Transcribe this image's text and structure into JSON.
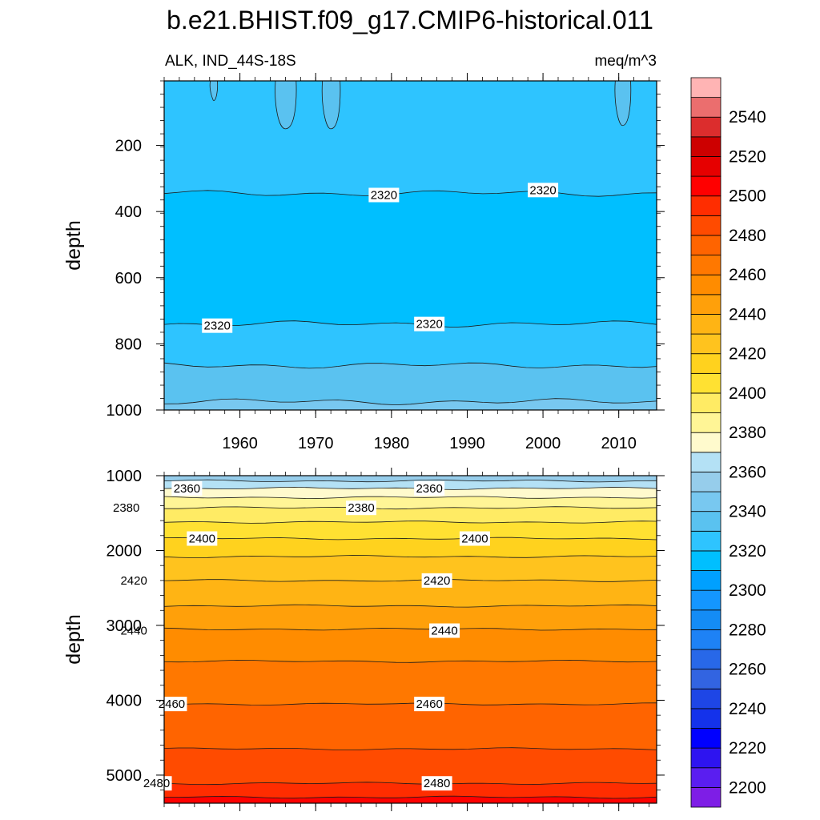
{
  "chart_data": {
    "type": "heatmap",
    "title": "b.e21.BHIST.f09_g17.CMIP6-historical.011",
    "left_string": "ALK, IND_44S-18S",
    "right_string": "meq/m^3",
    "colorbar": {
      "levels": [
        2200,
        2210,
        2220,
        2230,
        2240,
        2250,
        2260,
        2270,
        2280,
        2290,
        2300,
        2310,
        2320,
        2330,
        2340,
        2350,
        2360,
        2370,
        2380,
        2390,
        2400,
        2410,
        2420,
        2430,
        2440,
        2450,
        2460,
        2470,
        2480,
        2490,
        2500,
        2510,
        2520,
        2530,
        2540,
        2550
      ],
      "colors": [
        "#7e1ee6",
        "#5a1ef0",
        "#2e14f0",
        "#0000ff",
        "#1432eb",
        "#1e46e6",
        "#3264e1",
        "#2868e8",
        "#1e82f5",
        "#148cf5",
        "#1496ff",
        "#00a0ff",
        "#00bfff",
        "#2ec4ff",
        "#5ac2f0",
        "#78c8f0",
        "#96cdeb",
        "#b4e1f5",
        "#fffacd",
        "#fff596",
        "#ffeb64",
        "#ffe132",
        "#ffd21e",
        "#ffc31e",
        "#ffb414",
        "#ffa00a",
        "#ff8c00",
        "#ff7800",
        "#ff6400",
        "#ff4b00",
        "#ff2d00",
        "#ff0000",
        "#e60000",
        "#cd0000",
        "#dc2d2d",
        "#eb6e6e",
        "#ffb4b4"
      ],
      "labels": [
        "2200",
        "2220",
        "2240",
        "2260",
        "2280",
        "2300",
        "2320",
        "2340",
        "2360",
        "2380",
        "2400",
        "2420",
        "2440",
        "2460",
        "2480",
        "2500",
        "2520",
        "2540"
      ]
    },
    "top_panel": {
      "x_range": [
        1950,
        2015
      ],
      "x_ticks": [
        1960,
        1970,
        1980,
        1990,
        2000,
        2010
      ],
      "x_tick_labels": [
        "1960",
        "1970",
        "1980",
        "1990",
        "2000",
        "2010"
      ],
      "y_range": [
        5,
        1000
      ],
      "y_ticks": [
        200,
        400,
        600,
        800,
        1000
      ],
      "y_tick_labels": [
        "200",
        "400",
        "600",
        "800",
        "1000"
      ],
      "ylabel": "depth",
      "bands": [
        {
          "from_depth": 5,
          "to_depth": 345,
          "value": 2325
        },
        {
          "from_depth": 345,
          "to_depth": 740,
          "value": 2315
        },
        {
          "from_depth": 740,
          "to_depth": 865,
          "value": 2325
        },
        {
          "from_depth": 865,
          "to_depth": 975,
          "value": 2335
        },
        {
          "from_depth": 975,
          "to_depth": 1000,
          "value": 2345
        }
      ],
      "contour_labels": [
        {
          "text": "2320",
          "year": 1979,
          "depth": 350
        },
        {
          "text": "2320",
          "year": 2000,
          "depth": 335
        },
        {
          "text": "2320",
          "year": 1957,
          "depth": 745
        },
        {
          "text": "2320",
          "year": 1985,
          "depth": 740
        }
      ]
    },
    "bottom_panel": {
      "y_range": [
        1000,
        5375
      ],
      "y_ticks": [
        1000,
        2000,
        3000,
        4000,
        5000
      ],
      "y_tick_labels": [
        "1000",
        "2000",
        "3000",
        "4000",
        "5000"
      ],
      "ylabel": "depth",
      "bands": [
        {
          "from_depth": 1000,
          "to_depth": 1070,
          "value": 2355
        },
        {
          "from_depth": 1070,
          "to_depth": 1170,
          "value": 2365
        },
        {
          "from_depth": 1170,
          "to_depth": 1290,
          "value": 2375
        },
        {
          "from_depth": 1290,
          "to_depth": 1430,
          "value": 2385
        },
        {
          "from_depth": 1430,
          "to_depth": 1620,
          "value": 2395
        },
        {
          "from_depth": 1620,
          "to_depth": 1840,
          "value": 2405
        },
        {
          "from_depth": 1840,
          "to_depth": 2080,
          "value": 2415
        },
        {
          "from_depth": 2080,
          "to_depth": 2400,
          "value": 2425
        },
        {
          "from_depth": 2400,
          "to_depth": 2740,
          "value": 2435
        },
        {
          "from_depth": 2740,
          "to_depth": 3050,
          "value": 2445
        },
        {
          "from_depth": 3050,
          "to_depth": 3480,
          "value": 2455
        },
        {
          "from_depth": 3480,
          "to_depth": 4050,
          "value": 2465
        },
        {
          "from_depth": 4050,
          "to_depth": 4650,
          "value": 2475
        },
        {
          "from_depth": 4650,
          "to_depth": 5110,
          "value": 2485
        },
        {
          "from_depth": 5110,
          "to_depth": 5295,
          "value": 2495
        },
        {
          "from_depth": 5295,
          "to_depth": 5375,
          "value": 2505
        }
      ],
      "contour_labels": [
        {
          "text": "2360",
          "year": 1953,
          "depth": 1170
        },
        {
          "text": "2360",
          "year": 1985,
          "depth": 1170
        },
        {
          "text": "2380",
          "year": 1945,
          "depth": 1430
        },
        {
          "text": "2380",
          "year": 1976,
          "depth": 1430
        },
        {
          "text": "2400",
          "year": 1955,
          "depth": 1840
        },
        {
          "text": "2400",
          "year": 1991,
          "depth": 1840
        },
        {
          "text": "2420",
          "year": 1946,
          "depth": 2400
        },
        {
          "text": "2420",
          "year": 1986,
          "depth": 2400
        },
        {
          "text": "2440",
          "year": 1946,
          "depth": 3070
        },
        {
          "text": "2440",
          "year": 1987,
          "depth": 3070
        },
        {
          "text": "2460",
          "year": 1951,
          "depth": 4050
        },
        {
          "text": "2460",
          "year": 1985,
          "depth": 4050
        },
        {
          "text": "2480",
          "year": 1949,
          "depth": 5110
        },
        {
          "text": "2480",
          "year": 1986,
          "depth": 5110
        }
      ]
    }
  }
}
